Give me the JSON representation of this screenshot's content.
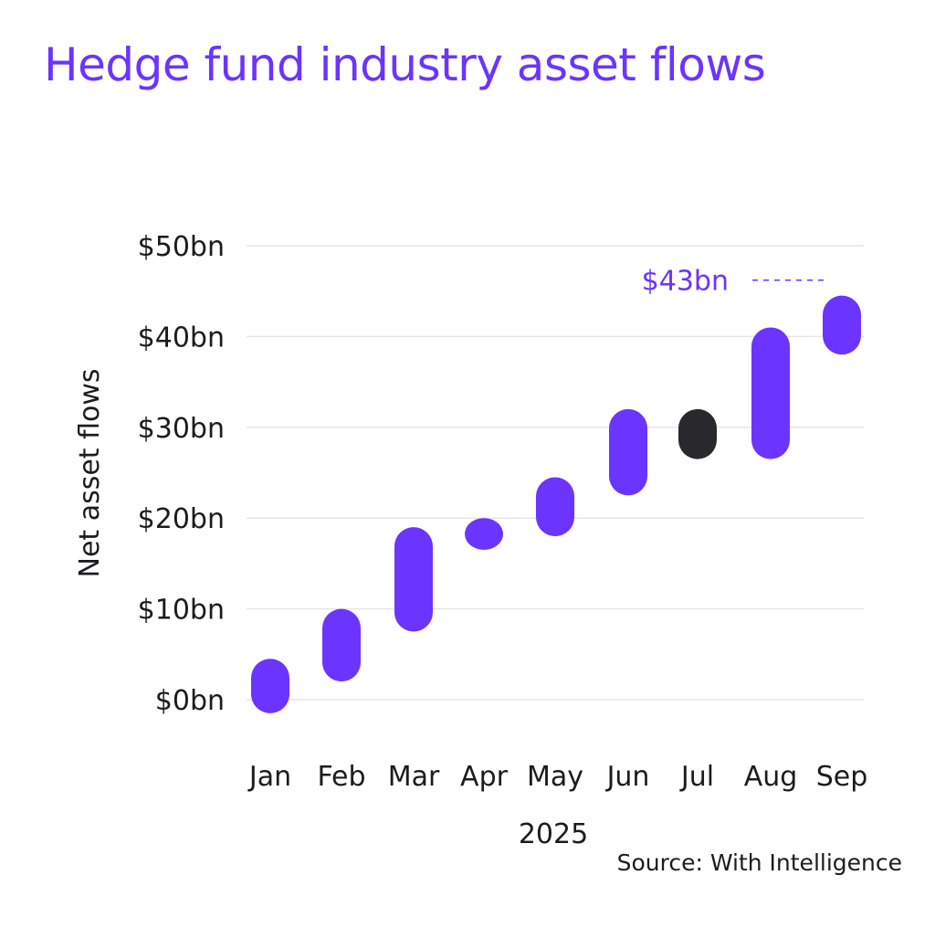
{
  "colors": {
    "primary": "#6b34ff",
    "highlight": "#29282d",
    "grid": "#e6e6ea",
    "text": "#1c1c1e"
  },
  "chart_data": {
    "type": "range-bar",
    "title": "Hedge fund industry asset flows",
    "ylabel": "Net asset flows",
    "xlabel": "2025",
    "source": "Source: With Intelligence",
    "ylim": [
      0,
      50
    ],
    "yticks": [
      0,
      10,
      20,
      30,
      40,
      50
    ],
    "ytick_labels": [
      "$0bn",
      "$10bn",
      "$20bn",
      "$30bn",
      "$40bn",
      "$50bn"
    ],
    "grid": true,
    "categories": [
      "Jan",
      "Feb",
      "Mar",
      "Apr",
      "May",
      "Jun",
      "Jul",
      "Aug",
      "Sep"
    ],
    "ranges": [
      {
        "low": -1.5,
        "high": 4.5
      },
      {
        "low": 2,
        "high": 10
      },
      {
        "low": 7.5,
        "high": 19
      },
      {
        "low": 16.5,
        "high": 20
      },
      {
        "low": 18,
        "high": 24.5
      },
      {
        "low": 22.5,
        "high": 32
      },
      {
        "low": 26.5,
        "high": 32
      },
      {
        "low": 26.5,
        "high": 41
      },
      {
        "low": 38,
        "high": 44.5
      }
    ],
    "highlight_category": "Jul",
    "annotation": {
      "label": "$43bn",
      "value": 45,
      "category": "Sep"
    }
  }
}
